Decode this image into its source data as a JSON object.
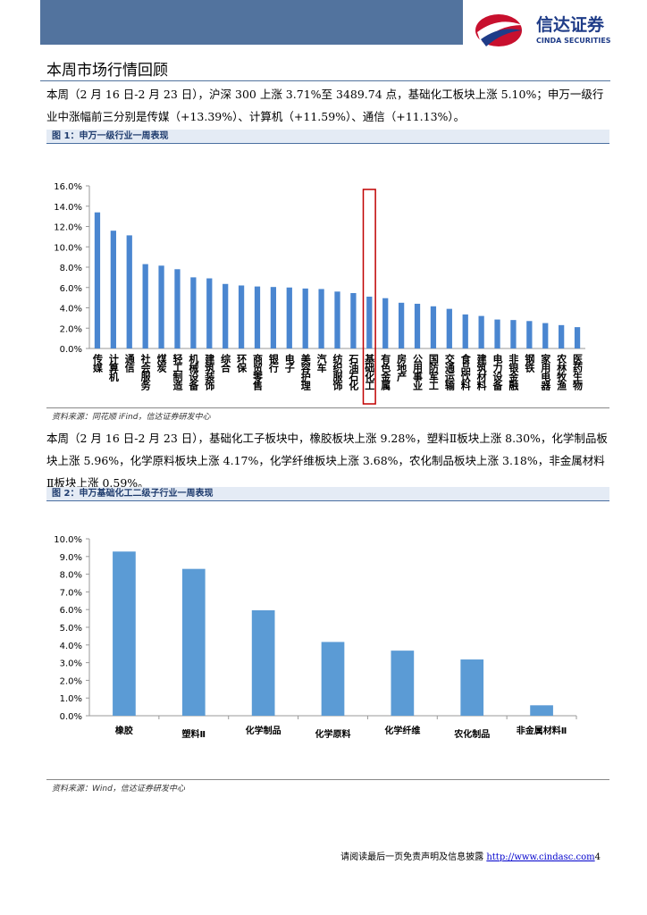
{
  "header": {
    "company": "信达证券",
    "company_en": "CINDA SECURITIES"
  },
  "section_title": "本周市场行情回顾",
  "paragraphs": [
    "本周（2 月 16 日-2 月 23 日），沪深 300 上涨 3.71%至 3489.74 点，基础化工板块上涨 5.10%；申万一级行业中涨幅前三分别是传媒（+13.39%）、计算机（+11.59%）、通信（+11.13%）。",
    "本周（2 月 16 日-2 月 23 日），基础化工子板块中，橡胶板块上涨 9.28%，塑料Ⅱ板块上涨 8.30%，化学制品板块上涨 5.96%，化学原料板块上涨 4.17%，化学纤维板块上涨 3.68%，农化制品板块上涨 3.18%，非金属材料Ⅱ板块上涨 0.59%。"
  ],
  "chart_data": [
    {
      "type": "bar",
      "title": "图 1：申万一级行业一周表现",
      "source": "资料来源：同花顺 iFind，信达证券研发中心",
      "categories": [
        "传媒",
        "计算机",
        "通信",
        "社会服务",
        "煤炭",
        "轻工制造",
        "机械设备",
        "建筑装饰",
        "综合",
        "环保",
        "商贸零售",
        "银行",
        "电子",
        "美容护理",
        "汽车",
        "纺织服饰",
        "石油石化",
        "基础化工",
        "有色金属",
        "房地产",
        "公用事业",
        "国防军工",
        "交通运输",
        "食品饮料",
        "建筑材料",
        "电力设备",
        "非银金融",
        "钢铁",
        "家用电器",
        "农林牧渔",
        "医药生物"
      ],
      "values": [
        13.39,
        11.59,
        11.13,
        8.3,
        8.15,
        7.8,
        7.0,
        6.9,
        6.35,
        6.2,
        6.1,
        6.05,
        6.0,
        5.9,
        5.85,
        5.6,
        5.45,
        5.1,
        4.95,
        4.5,
        4.4,
        4.15,
        3.9,
        3.35,
        3.2,
        2.85,
        2.8,
        2.7,
        2.5,
        2.3,
        2.1
      ],
      "color": "#4a86d0",
      "highlight": "基础化工",
      "highlight_color": "#c00000",
      "ylim": [
        0,
        16
      ],
      "yticks": [
        {
          "value": 0,
          "label": "0.0%"
        },
        {
          "value": 2,
          "label": "2.0%"
        },
        {
          "value": 4,
          "label": "4.0%"
        },
        {
          "value": 6,
          "label": "6.0%"
        },
        {
          "value": 8,
          "label": "8.0%"
        },
        {
          "value": 10,
          "label": "10.0%"
        },
        {
          "value": 12,
          "label": "12.0%"
        },
        {
          "value": 14,
          "label": "14.0%"
        },
        {
          "value": 16,
          "label": "16.0%"
        }
      ],
      "grid": false
    },
    {
      "type": "bar",
      "title": "图 2：申万基础化工二级子行业一周表现",
      "source": "资料来源：Wind，信达证券研发中心",
      "categories": [
        "橡胶",
        "塑料Ⅱ",
        "化学制品",
        "化学原料",
        "化学纤维",
        "农化制品",
        "非金属材料Ⅱ"
      ],
      "values": [
        9.28,
        8.3,
        5.96,
        4.17,
        3.68,
        3.18,
        0.59
      ],
      "color": "#5b9bd5",
      "ylim": [
        0,
        10
      ],
      "yticks": [
        {
          "value": 0,
          "label": "0.0%"
        },
        {
          "value": 1,
          "label": "1.0%"
        },
        {
          "value": 2,
          "label": "2.0%"
        },
        {
          "value": 3,
          "label": "3.0%"
        },
        {
          "value": 4,
          "label": "4.0%"
        },
        {
          "value": 5,
          "label": "5.0%"
        },
        {
          "value": 6,
          "label": "6.0%"
        },
        {
          "value": 7,
          "label": "7.0%"
        },
        {
          "value": 8,
          "label": "8.0%"
        },
        {
          "value": 9,
          "label": "9.0%"
        },
        {
          "value": 10,
          "label": "10.0%"
        }
      ],
      "grid": false
    }
  ],
  "footer": {
    "disclaimer": "请阅读最后一页免责声明及信息披露",
    "url": "http://www.cindasc.com",
    "page": "4"
  }
}
